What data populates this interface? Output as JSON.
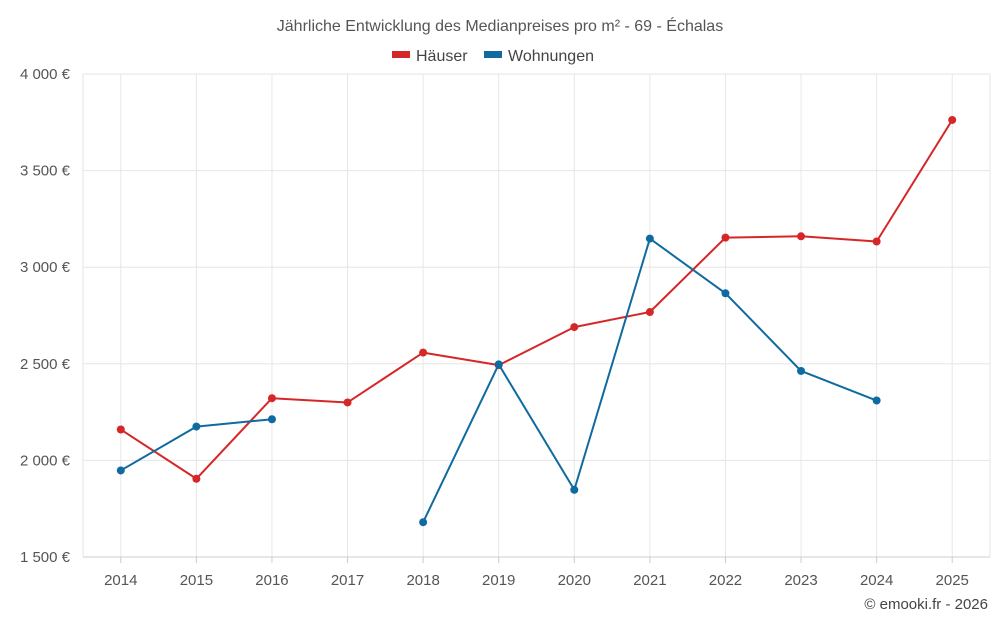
{
  "chart_data": {
    "type": "line",
    "title": "Jährliche Entwicklung des Medianpreises pro m² - 69 - Échalas",
    "categories": [
      "2014",
      "2015",
      "2016",
      "2017",
      "2018",
      "2019",
      "2020",
      "2021",
      "2022",
      "2023",
      "2024",
      "2025"
    ],
    "y_ticks": [
      1500,
      2000,
      2500,
      3000,
      3500,
      4000
    ],
    "y_tick_labels": [
      "1 500 €",
      "2 000 €",
      "2 500 €",
      "3 000 €",
      "3 500 €",
      "4 000 €"
    ],
    "ylim": [
      1500,
      4000
    ],
    "grid": true,
    "legend_position": "top-center",
    "series": [
      {
        "name": "Häuser",
        "color": "#d62728",
        "values": [
          2160,
          1905,
          2322,
          2300,
          2558,
          2493,
          2690,
          2768,
          3153,
          3160,
          3133,
          3762
        ]
      },
      {
        "name": "Wohnungen",
        "color": "#0f6aa0",
        "values": [
          1948,
          2175,
          2213,
          null,
          1680,
          2497,
          1848,
          3148,
          2865,
          2463,
          2310,
          null
        ]
      }
    ],
    "credit": "© emooki.fr - 2026"
  }
}
